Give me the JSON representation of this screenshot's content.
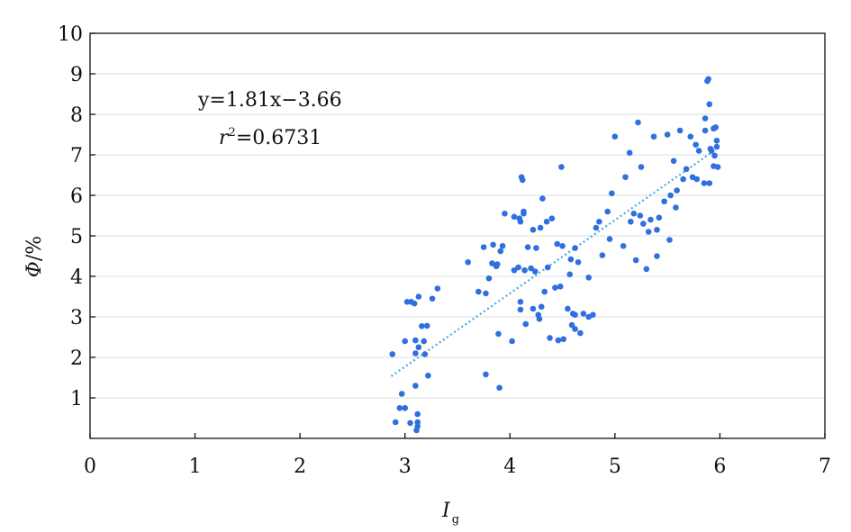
{
  "chart_data": {
    "type": "scatter",
    "xlabel": "I",
    "xlabel_sub": "g",
    "ylabel": "Φ",
    "ylabel_unit": "/%",
    "xlim": [
      0,
      7
    ],
    "ylim": [
      0,
      10
    ],
    "xticks": [
      "0",
      "1",
      "2",
      "3",
      "4",
      "5",
      "6",
      "7"
    ],
    "yticks": [
      "1",
      "2",
      "3",
      "4",
      "5",
      "6",
      "7",
      "8",
      "9",
      "10"
    ],
    "grid": "horizontal",
    "equation": "y=1.81x−3.66",
    "r2_label": "r",
    "r2_sup": "2",
    "r2_value": "=0.6731",
    "trendline": {
      "slope": 1.81,
      "intercept": -3.66,
      "x_range": [
        2.87,
        5.95
      ]
    },
    "points": [
      [
        2.88,
        2.08
      ],
      [
        2.91,
        0.4
      ],
      [
        2.95,
        0.75
      ],
      [
        2.97,
        1.1
      ],
      [
        3.0,
        0.75
      ],
      [
        3.0,
        2.4
      ],
      [
        3.02,
        3.37
      ],
      [
        3.05,
        0.38
      ],
      [
        3.06,
        3.37
      ],
      [
        3.09,
        3.33
      ],
      [
        3.1,
        2.1
      ],
      [
        3.1,
        1.3
      ],
      [
        3.1,
        2.42
      ],
      [
        3.11,
        0.2
      ],
      [
        3.12,
        0.4
      ],
      [
        3.12,
        0.6
      ],
      [
        3.12,
        0.3
      ],
      [
        3.13,
        2.25
      ],
      [
        3.13,
        3.5
      ],
      [
        3.16,
        2.77
      ],
      [
        3.18,
        2.4
      ],
      [
        3.19,
        2.08
      ],
      [
        3.21,
        2.78
      ],
      [
        3.22,
        1.55
      ],
      [
        3.26,
        3.45
      ],
      [
        3.31,
        3.7
      ],
      [
        3.6,
        4.35
      ],
      [
        3.7,
        3.62
      ],
      [
        3.75,
        4.72
      ],
      [
        3.77,
        3.58
      ],
      [
        3.77,
        1.58
      ],
      [
        3.8,
        3.95
      ],
      [
        3.83,
        4.32
      ],
      [
        3.84,
        4.78
      ],
      [
        3.87,
        4.25
      ],
      [
        3.88,
        4.3
      ],
      [
        3.89,
        2.58
      ],
      [
        3.9,
        1.25
      ],
      [
        3.91,
        4.62
      ],
      [
        3.93,
        4.75
      ],
      [
        3.95,
        5.55
      ],
      [
        4.02,
        2.4
      ],
      [
        4.04,
        5.47
      ],
      [
        4.04,
        4.15
      ],
      [
        4.08,
        4.22
      ],
      [
        4.09,
        5.43
      ],
      [
        4.1,
        3.18
      ],
      [
        4.1,
        5.35
      ],
      [
        4.1,
        3.37
      ],
      [
        4.11,
        6.45
      ],
      [
        4.12,
        6.38
      ],
      [
        4.13,
        5.6
      ],
      [
        4.13,
        5.55
      ],
      [
        4.14,
        4.15
      ],
      [
        4.15,
        2.82
      ],
      [
        4.17,
        4.72
      ],
      [
        4.2,
        4.2
      ],
      [
        4.22,
        5.15
      ],
      [
        4.22,
        3.2
      ],
      [
        4.24,
        4.12
      ],
      [
        4.25,
        4.7
      ],
      [
        4.27,
        3.05
      ],
      [
        4.28,
        2.95
      ],
      [
        4.29,
        5.2
      ],
      [
        4.3,
        3.25
      ],
      [
        4.31,
        5.92
      ],
      [
        4.33,
        3.62
      ],
      [
        4.35,
        5.35
      ],
      [
        4.36,
        4.22
      ],
      [
        4.38,
        2.48
      ],
      [
        4.4,
        5.43
      ],
      [
        4.43,
        3.72
      ],
      [
        4.45,
        4.8
      ],
      [
        4.46,
        2.42
      ],
      [
        4.48,
        3.75
      ],
      [
        4.49,
        6.7
      ],
      [
        4.5,
        4.75
      ],
      [
        4.51,
        2.45
      ],
      [
        4.55,
        3.2
      ],
      [
        4.57,
        4.05
      ],
      [
        4.58,
        4.42
      ],
      [
        4.59,
        2.8
      ],
      [
        4.6,
        3.08
      ],
      [
        4.62,
        2.7
      ],
      [
        4.62,
        3.05
      ],
      [
        4.62,
        4.7
      ],
      [
        4.65,
        4.35
      ],
      [
        4.67,
        2.6
      ],
      [
        4.7,
        3.08
      ],
      [
        4.75,
        3.97
      ],
      [
        4.75,
        3.0
      ],
      [
        4.79,
        3.05
      ],
      [
        4.82,
        5.2
      ],
      [
        4.85,
        5.35
      ],
      [
        4.88,
        4.52
      ],
      [
        4.93,
        5.6
      ],
      [
        4.95,
        4.92
      ],
      [
        4.97,
        6.05
      ],
      [
        5.0,
        7.45
      ],
      [
        5.08,
        4.75
      ],
      [
        5.1,
        6.45
      ],
      [
        5.14,
        7.05
      ],
      [
        5.15,
        5.35
      ],
      [
        5.18,
        5.55
      ],
      [
        5.2,
        4.4
      ],
      [
        5.22,
        7.8
      ],
      [
        5.24,
        5.5
      ],
      [
        5.25,
        6.7
      ],
      [
        5.27,
        5.3
      ],
      [
        5.3,
        4.18
      ],
      [
        5.32,
        5.1
      ],
      [
        5.34,
        5.4
      ],
      [
        5.37,
        7.45
      ],
      [
        5.4,
        5.15
      ],
      [
        5.4,
        4.5
      ],
      [
        5.42,
        5.45
      ],
      [
        5.47,
        5.85
      ],
      [
        5.5,
        7.5
      ],
      [
        5.52,
        4.9
      ],
      [
        5.53,
        6.0
      ],
      [
        5.56,
        6.85
      ],
      [
        5.58,
        5.7
      ],
      [
        5.59,
        6.12
      ],
      [
        5.62,
        7.6
      ],
      [
        5.65,
        6.4
      ],
      [
        5.68,
        6.65
      ],
      [
        5.72,
        7.45
      ],
      [
        5.74,
        6.45
      ],
      [
        5.77,
        7.25
      ],
      [
        5.78,
        6.4
      ],
      [
        5.8,
        7.1
      ],
      [
        5.85,
        6.3
      ],
      [
        5.86,
        7.6
      ],
      [
        5.86,
        7.9
      ],
      [
        5.88,
        8.82
      ],
      [
        5.89,
        8.87
      ],
      [
        5.9,
        6.3
      ],
      [
        5.9,
        8.25
      ],
      [
        5.91,
        7.15
      ],
      [
        5.92,
        7.1
      ],
      [
        5.94,
        7.65
      ],
      [
        5.94,
        6.72
      ],
      [
        5.95,
        6.98
      ],
      [
        5.96,
        7.68
      ],
      [
        5.97,
        7.2
      ],
      [
        5.97,
        7.35
      ],
      [
        5.98,
        6.7
      ]
    ]
  }
}
